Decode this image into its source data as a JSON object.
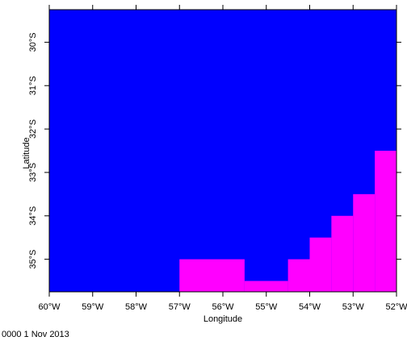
{
  "chart_data": {
    "type": "map",
    "xlabel": "Longitude",
    "ylabel": "Latitude",
    "footer": "0000 1 Nov 2013",
    "background_color": "#0000ff",
    "fill_color": "#ff00ff",
    "xlim": [
      -60,
      -52
    ],
    "ylim": [
      -35.75,
      -29.25
    ],
    "xticks": [
      {
        "value": -60,
        "label": "60°W"
      },
      {
        "value": -59,
        "label": "59°W"
      },
      {
        "value": -58,
        "label": "58°W"
      },
      {
        "value": -57,
        "label": "57°W"
      },
      {
        "value": -56,
        "label": "56°W"
      },
      {
        "value": -55,
        "label": "55°W"
      },
      {
        "value": -54,
        "label": "54°W"
      },
      {
        "value": -53,
        "label": "53°W"
      },
      {
        "value": -52,
        "label": "52°W"
      }
    ],
    "yticks": [
      {
        "value": -35,
        "label": "35°S"
      },
      {
        "value": -34,
        "label": "34°S"
      },
      {
        "value": -33,
        "label": "33°S"
      },
      {
        "value": -32,
        "label": "32°S"
      },
      {
        "value": -31,
        "label": "31°S"
      },
      {
        "value": -30,
        "label": "30°S"
      }
    ],
    "cells": [
      {
        "x": [
          -57,
          -55.5
        ],
        "y": [
          -35.75,
          -35
        ]
      },
      {
        "x": [
          -55.5,
          -54.5
        ],
        "y": [
          -35.75,
          -35.5
        ]
      },
      {
        "x": [
          -54.5,
          -54
        ],
        "y": [
          -35.75,
          -35
        ]
      },
      {
        "x": [
          -54,
          -53.5
        ],
        "y": [
          -35.75,
          -34.5
        ]
      },
      {
        "x": [
          -53.5,
          -53
        ],
        "y": [
          -35.75,
          -34
        ]
      },
      {
        "x": [
          -53,
          -52.5
        ],
        "y": [
          -35.75,
          -33.5
        ]
      },
      {
        "x": [
          -52.5,
          -52
        ],
        "y": [
          -35.75,
          -32.5
        ]
      }
    ]
  }
}
